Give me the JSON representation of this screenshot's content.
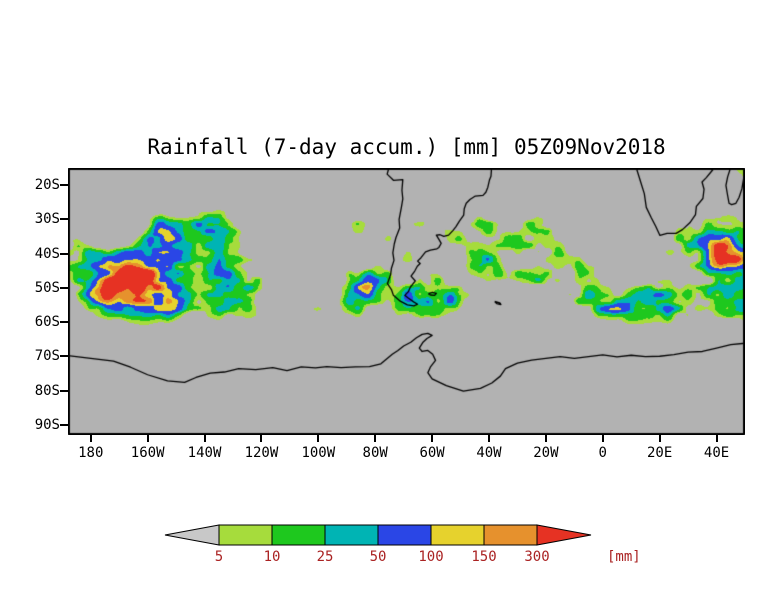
{
  "chart_data": {
    "type": "heatmap",
    "title": "Rainfall (7-day accum.) [mm] 05Z09Nov2018",
    "variable": "Rainfall",
    "accumulation": "7-day accum.",
    "units": "mm",
    "valid_time": "05Z09Nov2018",
    "x_axis": {
      "ticks": [
        {
          "label": "180",
          "value": -180
        },
        {
          "label": "160W",
          "value": -160
        },
        {
          "label": "140W",
          "value": -140
        },
        {
          "label": "120W",
          "value": -120
        },
        {
          "label": "100W",
          "value": -100
        },
        {
          "label": "80W",
          "value": -80
        },
        {
          "label": "60W",
          "value": -60
        },
        {
          "label": "40W",
          "value": -40
        },
        {
          "label": "20W",
          "value": -20
        },
        {
          "label": "0",
          "value": 0
        },
        {
          "label": "20E",
          "value": 20
        },
        {
          "label": "40E",
          "value": 40
        }
      ]
    },
    "y_axis": {
      "ticks": [
        {
          "label": "20S",
          "value": -20
        },
        {
          "label": "30S",
          "value": -30
        },
        {
          "label": "40S",
          "value": -40
        },
        {
          "label": "50S",
          "value": -50
        },
        {
          "label": "60S",
          "value": -60
        },
        {
          "label": "70S",
          "value": -70
        },
        {
          "label": "80S",
          "value": -80
        },
        {
          "label": "90S",
          "value": -90
        }
      ]
    },
    "legend": {
      "levels": [
        5,
        10,
        25,
        50,
        100,
        150,
        300
      ],
      "units_label": "[mm]",
      "label_color": "#aa2222",
      "below_min_color": "#c8c8c8",
      "above_max_color": "#e63223",
      "bin_colors": [
        "#a6dc3c",
        "#1ec81e",
        "#00b4b4",
        "#2a46e6",
        "#e6d22d",
        "#e6912d"
      ]
    },
    "map": {
      "background_color": "#b2b2b2",
      "coastline_color": "#000000"
    }
  }
}
